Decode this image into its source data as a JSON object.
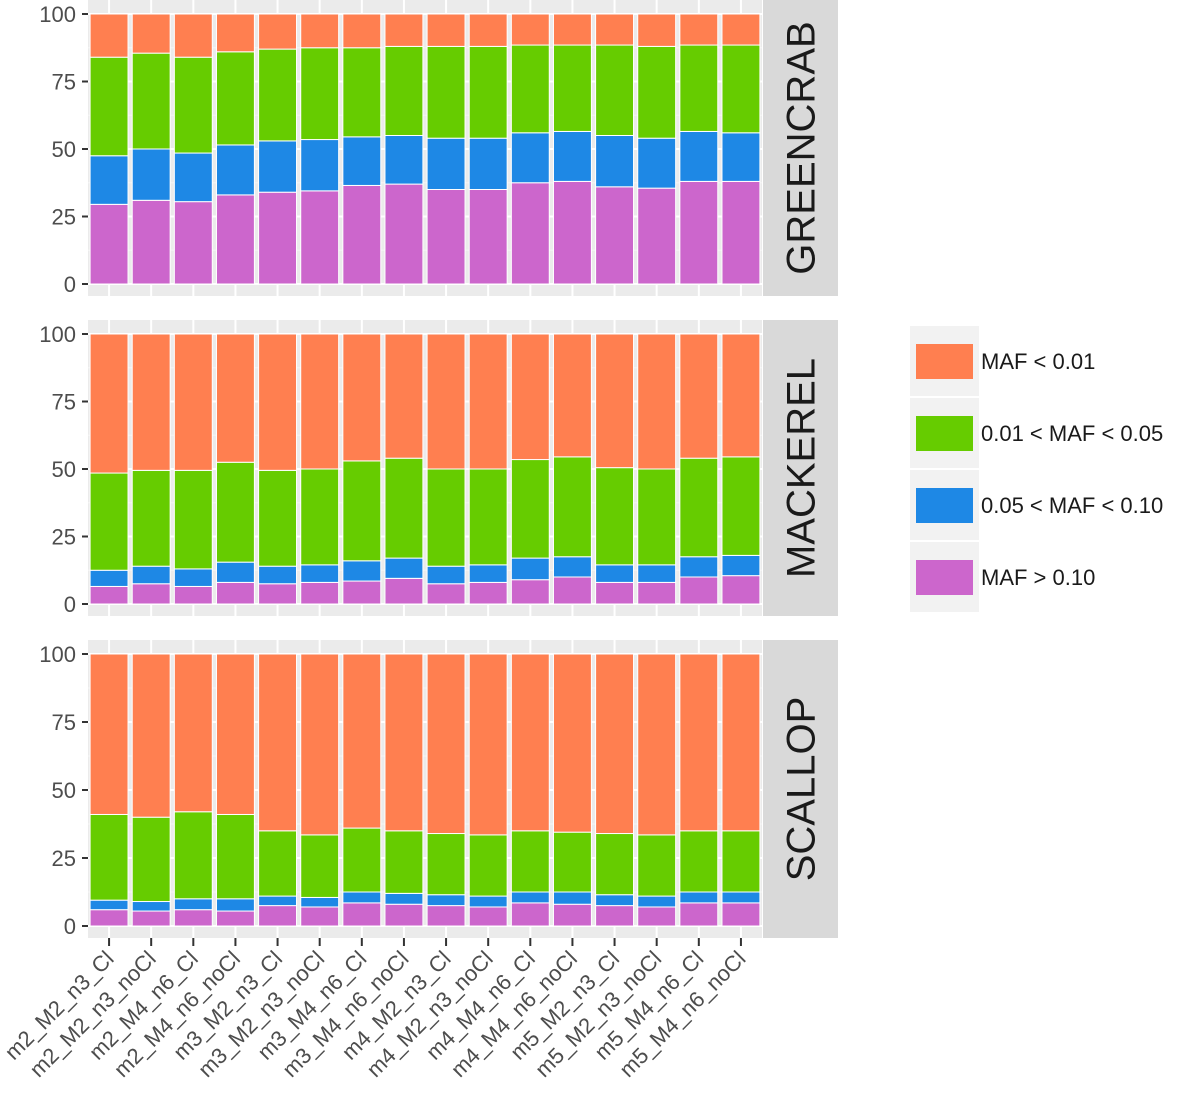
{
  "chart_data": {
    "type": "bar",
    "stacked": true,
    "facet_by": "species",
    "categories": [
      "m2_M2_n3_Cl",
      "m2_M2_n3_noCl",
      "m2_M4_n6_Cl",
      "m2_M4_n6_noCl",
      "m3_M2_n3_Cl",
      "m3_M2_n3_noCl",
      "m3_M4_n6_Cl",
      "m3_M4_n6_noCl",
      "m4_M2_n3_Cl",
      "m4_M2_n3_noCl",
      "m4_M4_n6_Cl",
      "m4_M4_n6_noCl",
      "m5_M2_n3_Cl",
      "m5_M2_n3_noCl",
      "m5_M4_n6_Cl",
      "m5_M4_n6_noCl"
    ],
    "ylim": [
      0,
      100
    ],
    "yticks": [
      "0",
      "25",
      "50",
      "75",
      "100"
    ],
    "xlabel": "",
    "ylabel": "",
    "title": "",
    "legend": {
      "position": "right",
      "entries": [
        {
          "label": "MAF < 0.01",
          "color": "#FF7F50"
        },
        {
          "label": "0.01 < MAF < 0.05",
          "color": "#66CC00"
        },
        {
          "label": "0.05 < MAF < 0.10",
          "color": "#1E88E5"
        },
        {
          "label": "MAF > 0.10",
          "color": "#CC66CC"
        }
      ]
    },
    "series_order_bottom_to_top": [
      "MAF > 0.10",
      "0.05 < MAF < 0.10",
      "0.01 < MAF < 0.05",
      "MAF < 0.01"
    ],
    "panels": [
      {
        "name": "GREENCRAB",
        "series": [
          {
            "name": "MAF > 0.10",
            "values": [
              29.5,
              31,
              30.5,
              33,
              34,
              34.5,
              36.5,
              37,
              35,
              35,
              37.5,
              38,
              36,
              35.5,
              38,
              38
            ]
          },
          {
            "name": "0.05 < MAF < 0.10",
            "values": [
              18,
              19,
              18,
              18.5,
              19,
              19,
              18,
              18,
              19,
              19,
              18.5,
              18.5,
              19,
              18.5,
              18.5,
              18
            ]
          },
          {
            "name": "0.01 < MAF < 0.05",
            "values": [
              36.5,
              35.5,
              35.5,
              34.5,
              34,
              34,
              33,
              33,
              34,
              34,
              32.5,
              32,
              33.5,
              34,
              32,
              32.5
            ]
          },
          {
            "name": "MAF < 0.01",
            "values": [
              16,
              14.5,
              16,
              14,
              13,
              12.5,
              12.5,
              12,
              12,
              12,
              11.5,
              11.5,
              11.5,
              12,
              11.5,
              11.5
            ]
          }
        ]
      },
      {
        "name": "MACKEREL",
        "series": [
          {
            "name": "MAF > 0.10",
            "values": [
              6.5,
              7.5,
              6.5,
              8,
              7.5,
              8,
              8.5,
              9.5,
              7.5,
              8,
              9,
              10,
              8,
              8,
              10,
              10.5
            ]
          },
          {
            "name": "0.05 < MAF < 0.10",
            "values": [
              6,
              6.5,
              6.5,
              7.5,
              6.5,
              6.5,
              7.5,
              7.5,
              6.5,
              6.5,
              8,
              7.5,
              6.5,
              6.5,
              7.5,
              7.5
            ]
          },
          {
            "name": "0.01 < MAF < 0.05",
            "values": [
              36,
              35.5,
              36.5,
              37,
              35.5,
              35.5,
              37,
              37,
              36,
              35.5,
              36.5,
              37,
              36,
              35.5,
              36.5,
              36.5
            ]
          },
          {
            "name": "MAF < 0.01",
            "values": [
              51.5,
              50.5,
              50.5,
              47.5,
              50.5,
              50,
              47,
              46,
              50,
              50,
              46.5,
              45.5,
              49.5,
              50,
              46,
              45.5
            ]
          }
        ]
      },
      {
        "name": "SCALLOP",
        "series": [
          {
            "name": "MAF > 0.10",
            "values": [
              6,
              5.5,
              6,
              5.5,
              7.5,
              7,
              8.5,
              8,
              7.5,
              7,
              8.5,
              8,
              7.5,
              7,
              8.5,
              8.5
            ]
          },
          {
            "name": "0.05 < MAF < 0.10",
            "values": [
              3.5,
              3.5,
              4,
              4.5,
              3.5,
              3.5,
              4,
              4,
              4,
              4,
              4,
              4.5,
              4,
              4,
              4,
              4
            ]
          },
          {
            "name": "0.01 < MAF < 0.05",
            "values": [
              31.5,
              31,
              32,
              31,
              24,
              23,
              23.5,
              23,
              22.5,
              22.5,
              22.5,
              22,
              22.5,
              22.5,
              22.5,
              22.5
            ]
          },
          {
            "name": "MAF < 0.01",
            "values": [
              59,
              60,
              58,
              59,
              65,
              66.5,
              64,
              65,
              66,
              66.5,
              65,
              65.5,
              66,
              66.5,
              65,
              65
            ]
          }
        ]
      }
    ]
  }
}
